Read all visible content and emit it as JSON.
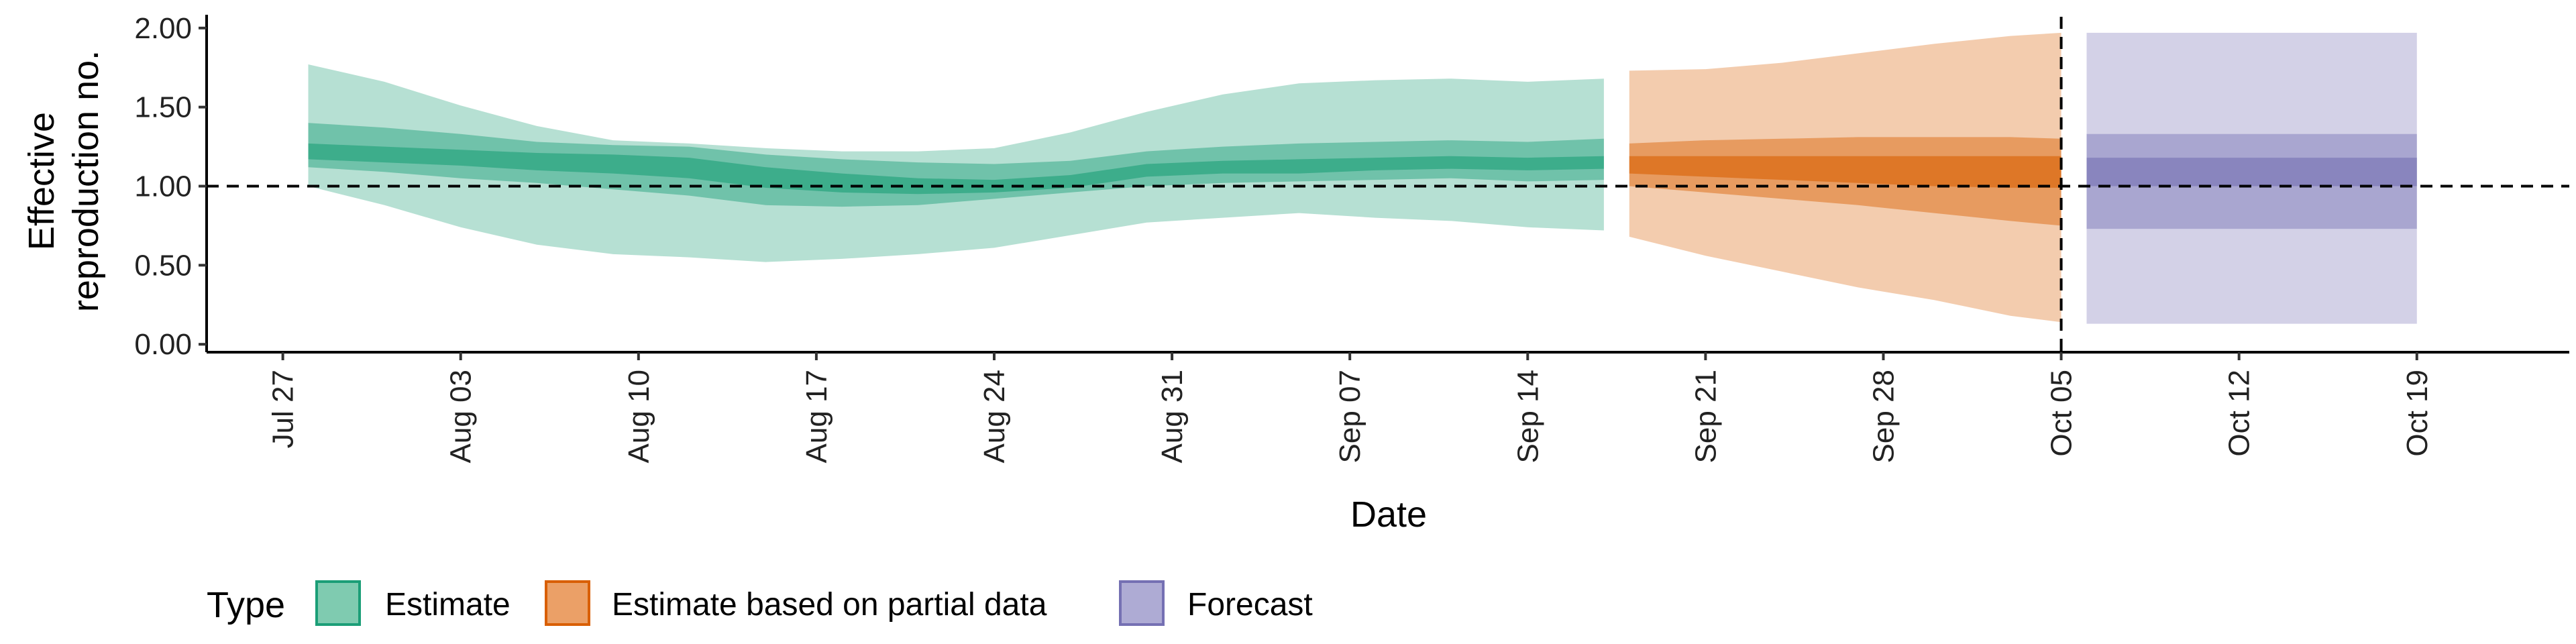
{
  "chart_data": {
    "type": "area",
    "xlabel": "Date",
    "ylabel_lines": [
      "Effective",
      "reproduction no."
    ],
    "ylim": [
      -0.05,
      2.05
    ],
    "xlim": [
      "2020-07-24",
      "2020-10-25"
    ],
    "yticks": [
      0.0,
      0.5,
      1.0,
      1.5,
      2.0
    ],
    "ytick_labels": [
      "0.00",
      "0.50",
      "1.00",
      "1.50",
      "2.00"
    ],
    "xticks": [
      "2020-07-27",
      "2020-08-03",
      "2020-08-10",
      "2020-08-17",
      "2020-08-24",
      "2020-08-31",
      "2020-09-07",
      "2020-09-14",
      "2020-09-21",
      "2020-09-28",
      "2020-10-05",
      "2020-10-12",
      "2020-10-19"
    ],
    "xtick_labels": [
      "Jul 27",
      "Aug 03",
      "Aug 10",
      "Aug 17",
      "Aug 24",
      "Aug 31",
      "Sep 07",
      "Sep 14",
      "Sep 21",
      "Sep 28",
      "Oct 05",
      "Oct 12",
      "Oct 19"
    ],
    "reference_line_y": 1.0,
    "vertical_line_x": "2020-10-05",
    "grid": false,
    "legend_position": "bottom",
    "legend_title": "Type",
    "colors": {
      "estimate": "#1b9e77",
      "estimate_fill": "#7fcbb0",
      "partial": "#d95f02",
      "partial_fill": "#eba067",
      "forecast": "#7570b3",
      "forecast_fill": "#aeabd4"
    },
    "series": [
      {
        "name": "Estimate",
        "key": "estimate",
        "x": [
          "2020-07-28",
          "2020-07-31",
          "2020-08-03",
          "2020-08-06",
          "2020-08-09",
          "2020-08-12",
          "2020-08-15",
          "2020-08-18",
          "2020-08-21",
          "2020-08-24",
          "2020-08-27",
          "2020-08-30",
          "2020-09-02",
          "2020-09-05",
          "2020-09-08",
          "2020-09-11",
          "2020-09-14",
          "2020-09-17"
        ],
        "median": [
          1.22,
          1.2,
          1.18,
          1.16,
          1.14,
          1.12,
          1.06,
          1.02,
          1.0,
          1.0,
          1.03,
          1.1,
          1.12,
          1.12,
          1.14,
          1.15,
          1.14,
          1.15
        ],
        "ci50_low": [
          1.17,
          1.15,
          1.13,
          1.1,
          1.08,
          1.05,
          0.99,
          0.96,
          0.95,
          0.96,
          0.99,
          1.06,
          1.08,
          1.08,
          1.1,
          1.11,
          1.1,
          1.11
        ],
        "ci50_high": [
          1.27,
          1.25,
          1.23,
          1.21,
          1.2,
          1.18,
          1.12,
          1.08,
          1.05,
          1.04,
          1.07,
          1.14,
          1.16,
          1.17,
          1.18,
          1.19,
          1.18,
          1.19
        ],
        "ci90_low": [
          1.12,
          1.09,
          1.05,
          1.02,
          0.98,
          0.94,
          0.88,
          0.87,
          0.88,
          0.92,
          0.96,
          1.0,
          1.02,
          1.03,
          1.04,
          1.05,
          1.03,
          1.04
        ],
        "ci90_high": [
          1.4,
          1.37,
          1.33,
          1.28,
          1.26,
          1.25,
          1.2,
          1.17,
          1.15,
          1.14,
          1.16,
          1.22,
          1.25,
          1.27,
          1.28,
          1.29,
          1.28,
          1.3
        ],
        "ci_low": [
          1.0,
          0.88,
          0.74,
          0.63,
          0.57,
          0.55,
          0.52,
          0.54,
          0.57,
          0.61,
          0.69,
          0.77,
          0.8,
          0.83,
          0.8,
          0.78,
          0.74,
          0.72
        ],
        "ci_high": [
          1.77,
          1.66,
          1.51,
          1.38,
          1.29,
          1.27,
          1.24,
          1.22,
          1.22,
          1.24,
          1.34,
          1.47,
          1.58,
          1.65,
          1.67,
          1.68,
          1.66,
          1.68
        ]
      },
      {
        "name": "Estimate based on partial data",
        "key": "partial",
        "x": [
          "2020-09-18",
          "2020-09-21",
          "2020-09-24",
          "2020-09-27",
          "2020-09-30",
          "2020-10-03",
          "2020-10-05"
        ],
        "median": [
          1.13,
          1.12,
          1.11,
          1.1,
          1.09,
          1.08,
          1.08
        ],
        "ci50_low": [
          1.08,
          1.06,
          1.04,
          1.02,
          1.0,
          0.99,
          0.99
        ],
        "ci50_high": [
          1.19,
          1.19,
          1.19,
          1.19,
          1.19,
          1.19,
          1.19
        ],
        "ci90_low": [
          1.0,
          0.96,
          0.92,
          0.88,
          0.83,
          0.78,
          0.75
        ],
        "ci90_high": [
          1.27,
          1.29,
          1.3,
          1.31,
          1.31,
          1.31,
          1.3
        ],
        "ci_low": [
          0.68,
          0.56,
          0.46,
          0.36,
          0.28,
          0.18,
          0.14
        ],
        "ci_high": [
          1.73,
          1.74,
          1.78,
          1.84,
          1.9,
          1.95,
          1.97
        ]
      },
      {
        "name": "Forecast",
        "key": "forecast",
        "x": [
          "2020-10-06",
          "2020-10-19"
        ],
        "median": [
          1.0,
          1.0
        ],
        "ci50_low": [
          1.0,
          1.0
        ],
        "ci50_high": [
          1.18,
          1.18
        ],
        "ci90_low": [
          0.73,
          0.73
        ],
        "ci90_high": [
          1.33,
          1.33
        ],
        "ci_low": [
          0.13,
          0.13
        ],
        "ci_high": [
          1.97,
          1.97
        ]
      }
    ]
  }
}
